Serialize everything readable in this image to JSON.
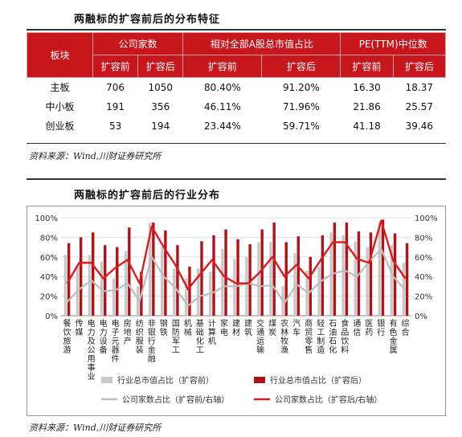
{
  "table": {
    "title": "两融标的扩容前后的分布特征",
    "header_board": "板块",
    "groups": [
      "公司家数",
      "相对全部A股总市值占比",
      "PE(TTM)中位数"
    ],
    "sub": [
      "扩容前",
      "扩容后",
      "扩容前",
      "扩容后",
      "扩容前",
      "扩容后"
    ],
    "rows": [
      {
        "label": "主板",
        "cells": [
          "706",
          "1050",
          "80.40%",
          "91.20%",
          "16.30",
          "18.37"
        ]
      },
      {
        "label": "中小板",
        "cells": [
          "191",
          "356",
          "46.11%",
          "71.96%",
          "21.86",
          "25.57"
        ]
      },
      {
        "label": "创业板",
        "cells": [
          "53",
          "194",
          "23.44%",
          "59.71%",
          "41.18",
          "39.46"
        ]
      }
    ],
    "source": "资料来源：Wind,川财证券研究所"
  },
  "chart": {
    "title": "两融标的扩容前后的行业分布",
    "source": "资料来源：Wind,川财证券研究所"
  },
  "chart_data": {
    "type": "bar",
    "categories": [
      "餐饮旅游",
      "传媒",
      "电力及公用事业",
      "电力设备",
      "电子元器件",
      "房地产",
      "纺织服装",
      "非银行金融",
      "钢铁",
      "国防军工",
      "机械",
      "基础化工",
      "计算机",
      "家电",
      "建材",
      "建筑",
      "交通运输",
      "煤炭",
      "农林牧渔",
      "汽车",
      "商贸零售",
      "轻工制造",
      "石油石化",
      "食品饮料",
      "通信",
      "医药",
      "银行",
      "有色金属",
      "综合"
    ],
    "ylim": [
      0,
      100
    ],
    "ylim_right": [
      0,
      100
    ],
    "yticks": [
      "0%",
      "20%",
      "40%",
      "60%",
      "80%",
      "100%"
    ],
    "colors": {
      "before": "#c8c8c8",
      "after": "#b01217"
    },
    "series": [
      {
        "name": "行业总市值占比（扩容前）",
        "kind": "bar",
        "axis": "left",
        "values": [
          62,
          52,
          62,
          55,
          38,
          66,
          30,
          95,
          70,
          48,
          38,
          48,
          45,
          68,
          58,
          60,
          75,
          75,
          30,
          64,
          46,
          50,
          85,
          82,
          76,
          70,
          96,
          72,
          54
        ]
      },
      {
        "name": "行业总市值占比（扩容后）",
        "kind": "bar",
        "axis": "left",
        "values": [
          74,
          80,
          85,
          72,
          70,
          90,
          45,
          95,
          87,
          72,
          50,
          76,
          82,
          88,
          78,
          73,
          88,
          95,
          75,
          81,
          60,
          82,
          95,
          95,
          86,
          85,
          98,
          84,
          74
        ]
      },
      {
        "name": "公司家数占比（扩容前/右轴）",
        "kind": "line",
        "axis": "right",
        "values": [
          14,
          27,
          36,
          25,
          26,
          33,
          15,
          60,
          40,
          28,
          10,
          20,
          23,
          30,
          30,
          33,
          30,
          31,
          13,
          32,
          23,
          35,
          43,
          46,
          40,
          55,
          68,
          40,
          26
        ]
      },
      {
        "name": "公司家数占比（扩容后/右轴）",
        "kind": "line",
        "axis": "right",
        "values": [
          33,
          54,
          54,
          38,
          49,
          57,
          33,
          91,
          70,
          51,
          27,
          42,
          57,
          40,
          33,
          33,
          45,
          60,
          40,
          52,
          38,
          57,
          75,
          75,
          58,
          54,
          97,
          56,
          38
        ]
      }
    ]
  }
}
